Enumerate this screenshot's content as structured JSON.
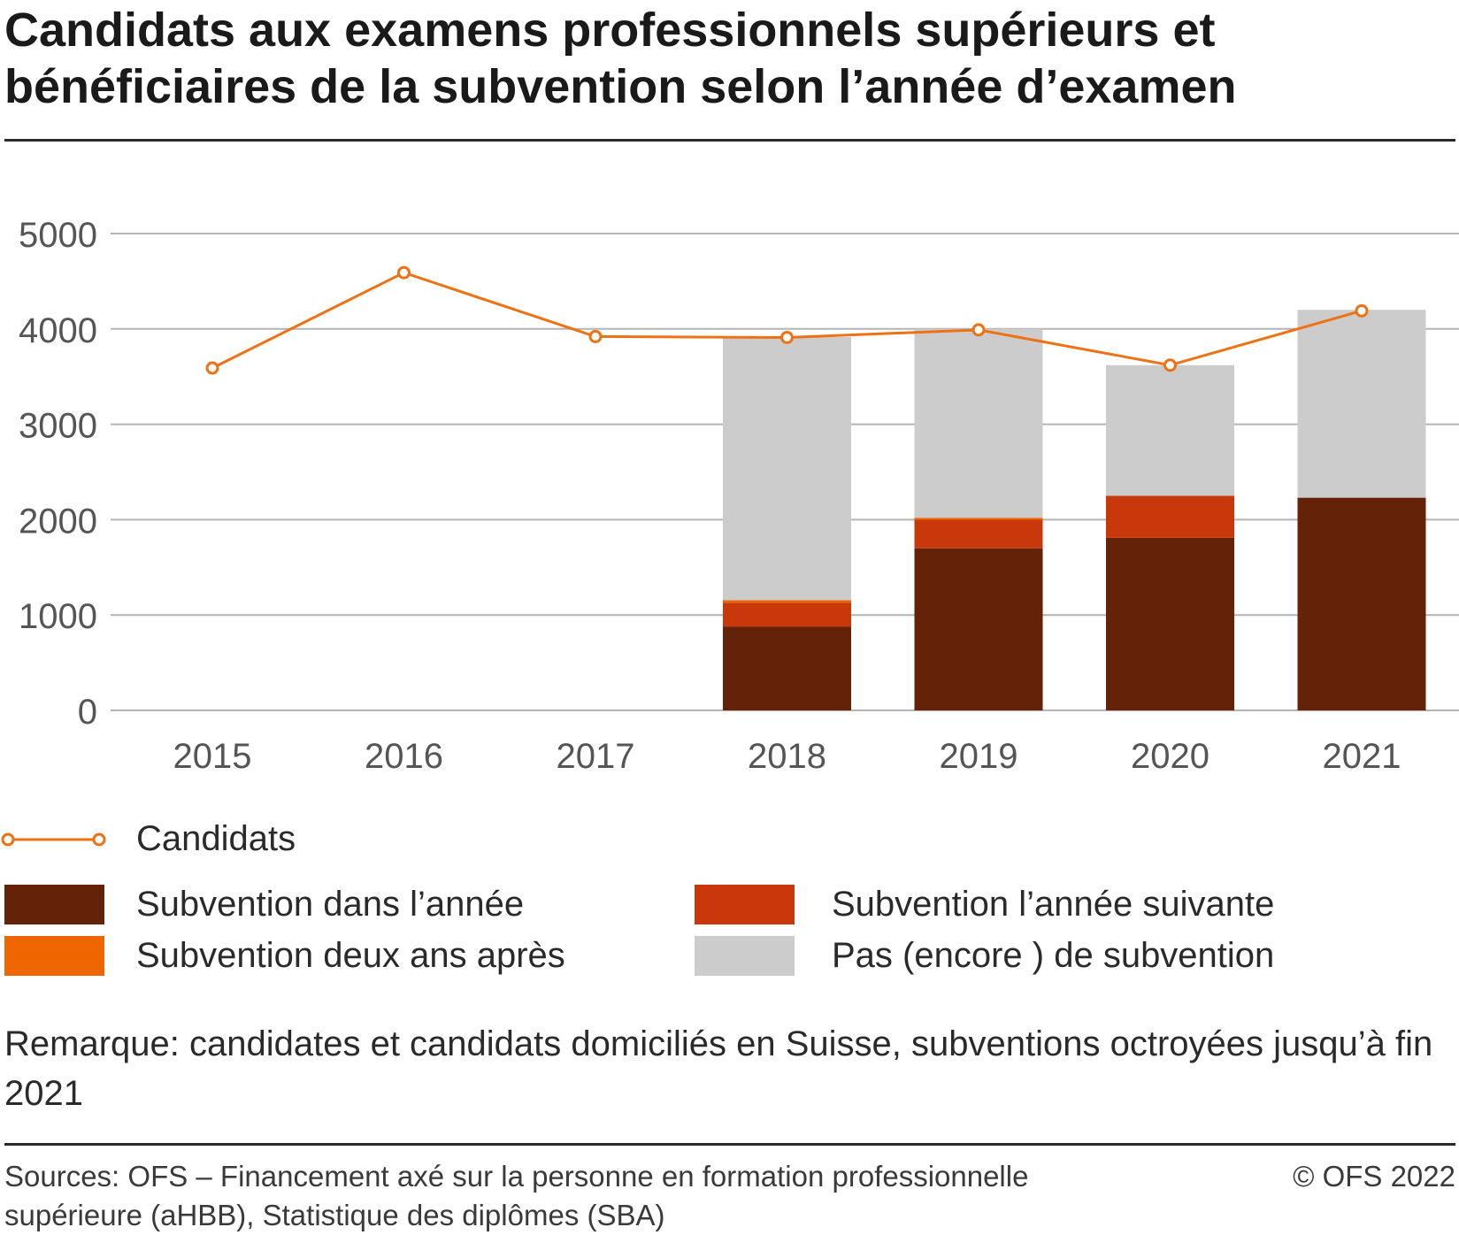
{
  "title": "Candidats aux examens professionnels supérieurs et bénéficiaires de la subvention selon l’année d’examen",
  "colors": {
    "dans_annee": "#642308",
    "annee_suivante": "#c8380b",
    "deux_ans": "#ee6600",
    "pas_encore": "#cccccc",
    "candidats": "#ee7214",
    "grid": "#b4b4b4",
    "axis_text": "#555555"
  },
  "legend": {
    "candidats": "Candidats",
    "dans_annee": "Subvention dans l’année",
    "annee_suivante": "Subvention l’année suivante",
    "deux_ans": "Subvention deux ans après",
    "pas_encore": "Pas (encore ) de subvention"
  },
  "note": "Remarque: candidates et candidats domiciliés en Suisse, subventions octroyées jusqu’à fin 2021",
  "sources": "Sources: OFS – Financement axé sur la personne en formation professionnelle supérieure (aHBB), Statistique des diplômes (SBA)",
  "copyright": "© OFS 2022",
  "chart_data": {
    "type": "bar",
    "stacked": true,
    "categories": [
      "2015",
      "2016",
      "2017",
      "2018",
      "2019",
      "2020",
      "2021"
    ],
    "series": [
      {
        "name": "Subvention dans l’année",
        "values": [
          null,
          null,
          null,
          880,
          1700,
          1810,
          2230
        ]
      },
      {
        "name": "Subvention l’année suivante",
        "values": [
          null,
          null,
          null,
          250,
          300,
          440,
          0
        ]
      },
      {
        "name": "Subvention deux ans après",
        "values": [
          null,
          null,
          null,
          25,
          20,
          0,
          0
        ]
      },
      {
        "name": "Pas (encore ) de subvention",
        "values": [
          null,
          null,
          null,
          2760,
          1980,
          1370,
          1970
        ]
      }
    ],
    "line": {
      "name": "Candidats",
      "values": [
        3590,
        4590,
        3920,
        3910,
        3990,
        3620,
        4190
      ]
    },
    "yticks": [
      0,
      1000,
      2000,
      3000,
      4000,
      5000
    ],
    "ylim": [
      0,
      5000
    ],
    "grid": true,
    "legend_position": "bottom"
  }
}
